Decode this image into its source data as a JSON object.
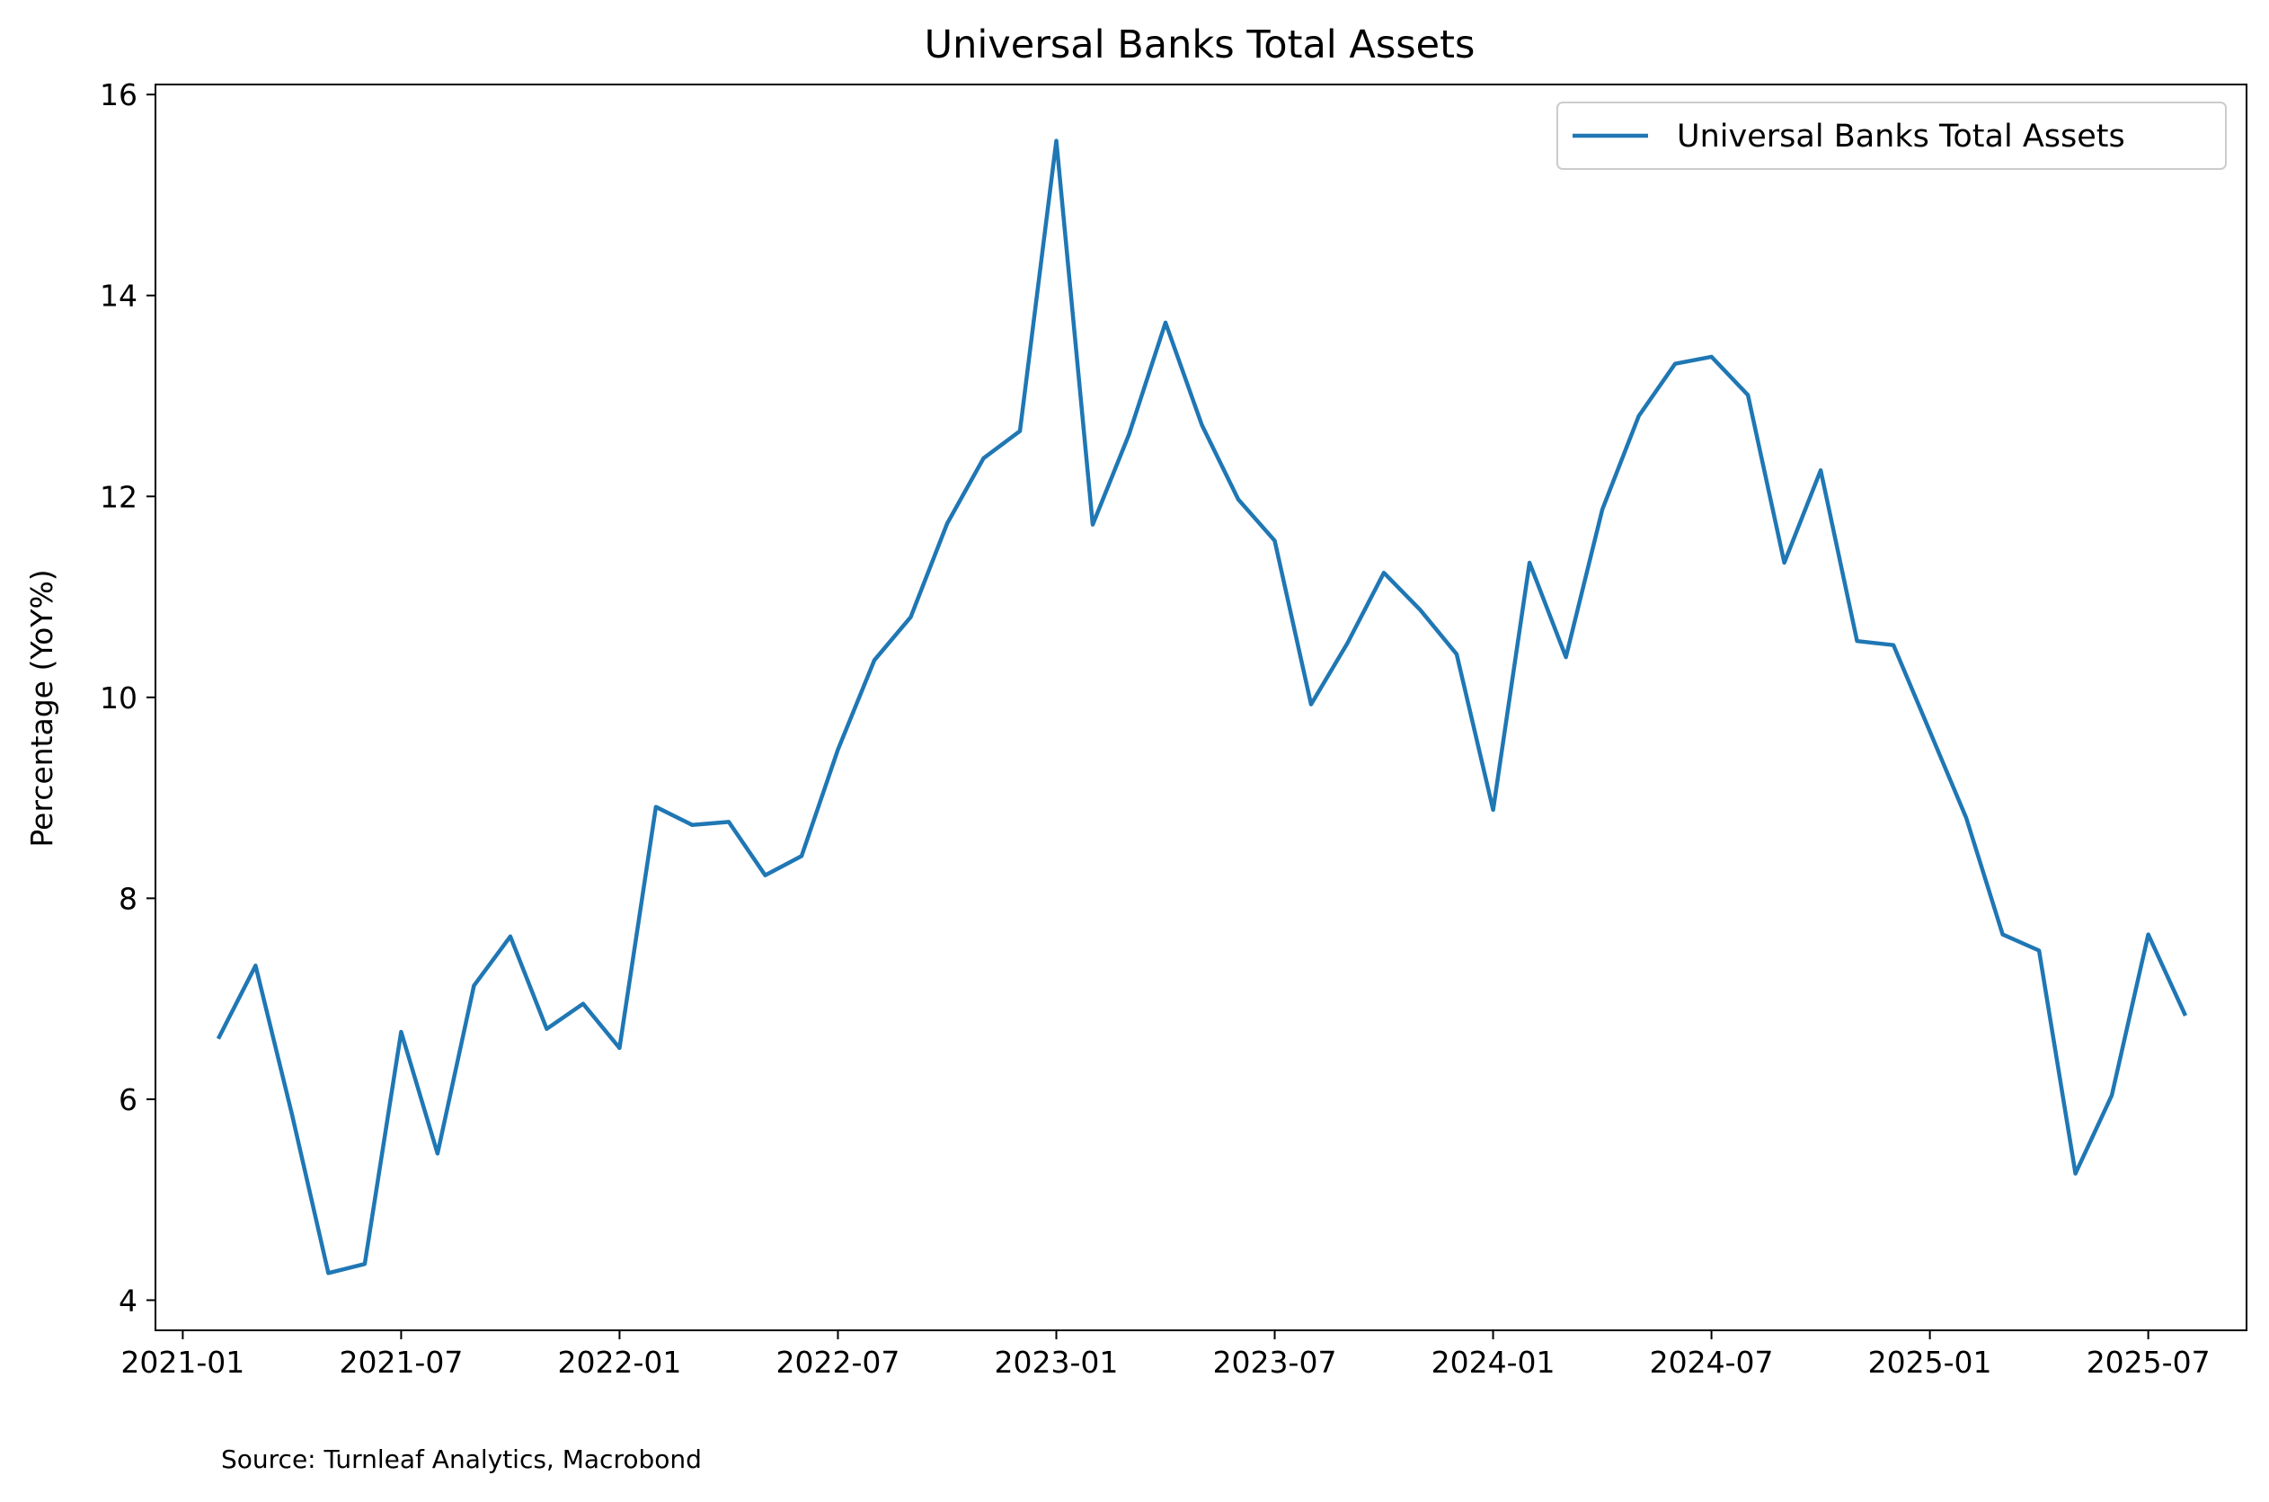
{
  "colors": {
    "series": "#1f77b4",
    "axes": "#000000",
    "legend_border": "#cccccc"
  },
  "chart_data": {
    "type": "line",
    "title": "Universal Banks Total Assets",
    "xlabel": "",
    "ylabel": "Percentage (YoY%)",
    "source": "Source: Turnleaf Analytics, Macrobond",
    "legend": {
      "placement": "top-right",
      "entries": [
        "Universal Banks Total Assets"
      ]
    },
    "grid": false,
    "xlim": [
      "2021-01",
      "2025-09"
    ],
    "ylim": [
      3.7,
      16.1
    ],
    "xticks": [
      "2021-01",
      "2021-07",
      "2022-01",
      "2022-07",
      "2023-01",
      "2023-07",
      "2024-01",
      "2024-07",
      "2025-01",
      "2025-07"
    ],
    "yticks": [
      4,
      6,
      8,
      10,
      12,
      14,
      16
    ],
    "x": [
      "2021-02",
      "2021-03",
      "2021-04",
      "2021-05",
      "2021-06",
      "2021-07",
      "2021-08",
      "2021-09",
      "2021-10",
      "2021-11",
      "2021-12",
      "2022-01",
      "2022-02",
      "2022-03",
      "2022-04",
      "2022-05",
      "2022-06",
      "2022-07",
      "2022-08",
      "2022-09",
      "2022-10",
      "2022-11",
      "2022-12",
      "2023-01",
      "2023-02",
      "2023-03",
      "2023-04",
      "2023-05",
      "2023-06",
      "2023-07",
      "2023-08",
      "2023-09",
      "2023-10",
      "2023-11",
      "2023-12",
      "2024-01",
      "2024-02",
      "2024-03",
      "2024-04",
      "2024-05",
      "2024-06",
      "2024-07",
      "2024-08",
      "2024-09",
      "2024-10",
      "2024-11",
      "2024-12",
      "2025-01",
      "2025-02",
      "2025-03",
      "2025-04",
      "2025-05",
      "2025-06",
      "2025-07",
      "2025-08"
    ],
    "series": [
      {
        "name": "Universal Banks Total Assets",
        "values": [
          6.62,
          7.33,
          5.85,
          4.27,
          4.36,
          6.67,
          5.46,
          7.13,
          7.62,
          6.7,
          6.95,
          6.51,
          8.91,
          8.73,
          8.76,
          8.23,
          8.42,
          9.48,
          10.37,
          10.8,
          11.73,
          12.38,
          12.65,
          15.54,
          11.72,
          12.62,
          13.73,
          12.71,
          11.97,
          11.56,
          9.93,
          10.54,
          11.24,
          10.87,
          10.43,
          8.88,
          11.34,
          10.4,
          11.87,
          12.8,
          13.32,
          13.39,
          13.01,
          11.34,
          12.26,
          10.56,
          10.52,
          9.66,
          8.8,
          7.64,
          7.48,
          5.26,
          6.04,
          7.64,
          6.85
        ]
      }
    ]
  }
}
